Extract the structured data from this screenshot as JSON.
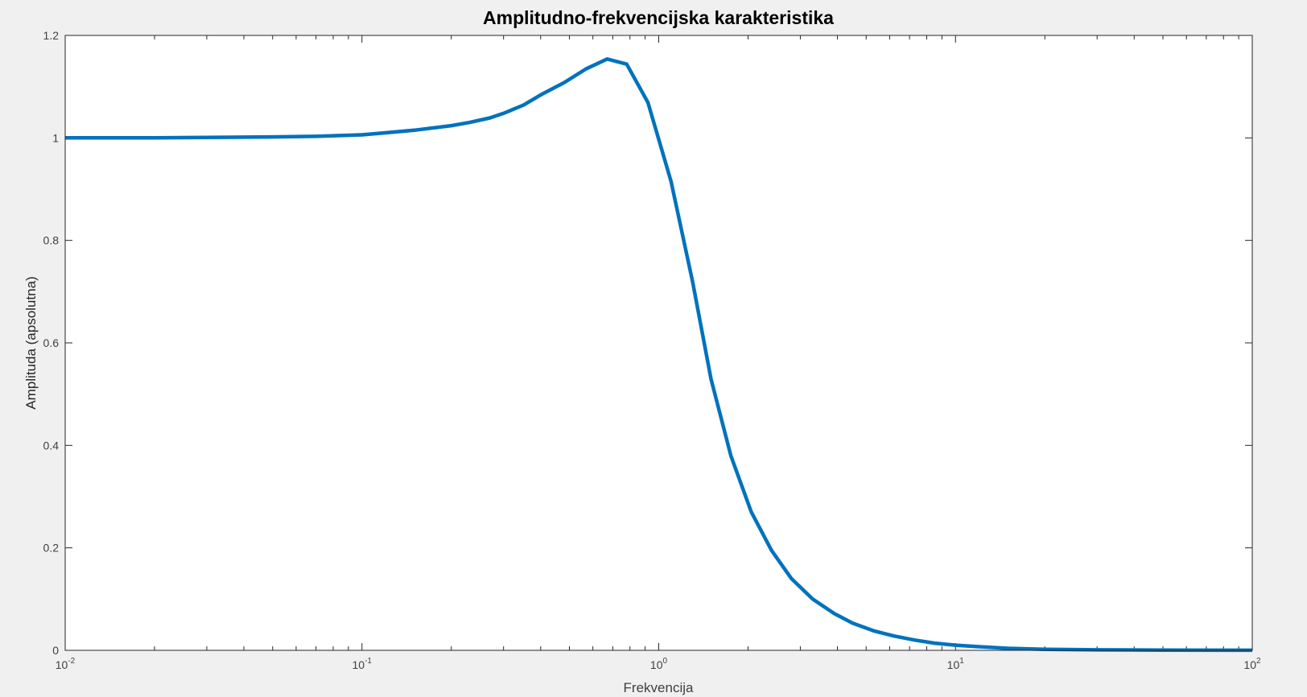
{
  "chart_data": {
    "type": "line",
    "title": "Amplitudno-frekvencijska karakteristika",
    "xlabel": "Frekvencija",
    "ylabel": "Amplituda (apsolutna)",
    "xscale": "log",
    "xlim": [
      0.01,
      100
    ],
    "ylim": [
      0,
      1.2
    ],
    "grid": false,
    "x_ticks": [
      {
        "value": 0.01,
        "base": "10",
        "exp": "-2"
      },
      {
        "value": 0.1,
        "base": "10",
        "exp": "-1"
      },
      {
        "value": 1,
        "base": "10",
        "exp": "0"
      },
      {
        "value": 10,
        "base": "10",
        "exp": "1"
      },
      {
        "value": 100,
        "base": "10",
        "exp": "2"
      }
    ],
    "y_ticks": [
      {
        "value": 0,
        "label": "0"
      },
      {
        "value": 0.2,
        "label": "0.2"
      },
      {
        "value": 0.4,
        "label": "0.4"
      },
      {
        "value": 0.6,
        "label": "0.6"
      },
      {
        "value": 0.8,
        "label": "0.8"
      },
      {
        "value": 1,
        "label": "1"
      },
      {
        "value": 1.2,
        "label": "1.2"
      }
    ],
    "series": [
      {
        "color": "#0072bd",
        "x": [
          0.01,
          0.02,
          0.03,
          0.05,
          0.07,
          0.1,
          0.12,
          0.15,
          0.2,
          0.23,
          0.27,
          0.3,
          0.35,
          0.4,
          0.48,
          0.57,
          0.67,
          0.78,
          0.92,
          1.1,
          1.3,
          1.5,
          1.75,
          2.05,
          2.4,
          2.8,
          3.3,
          3.9,
          4.5,
          5.3,
          6.2,
          7.3,
          8.5,
          10,
          12,
          15,
          20,
          30,
          50,
          100
        ],
        "y": [
          1.0,
          1.0,
          1.001,
          1.002,
          1.003,
          1.006,
          1.01,
          1.015,
          1.024,
          1.03,
          1.039,
          1.048,
          1.064,
          1.084,
          1.108,
          1.135,
          1.154,
          1.144,
          1.069,
          0.915,
          0.72,
          0.53,
          0.38,
          0.27,
          0.195,
          0.14,
          0.1,
          0.072,
          0.053,
          0.038,
          0.028,
          0.02,
          0.014,
          0.01,
          0.007,
          0.004,
          0.002,
          0.001,
          0.0004,
          0.0001
        ]
      }
    ]
  }
}
